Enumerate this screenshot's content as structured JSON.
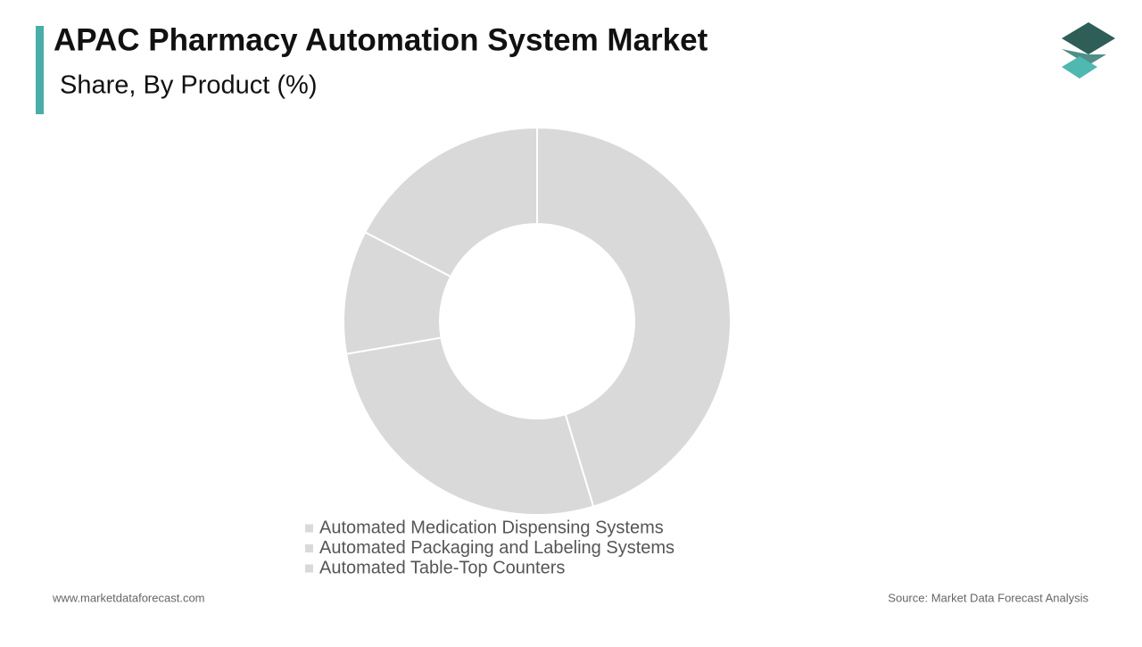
{
  "chart_data": {
    "type": "donut",
    "title": "APAC Pharmacy Automation System Market",
    "subtitle": "Share, By Product (%)",
    "categories": [
      "Automated Medication Dispensing Systems",
      "Automated Packaging and Labeling Systems",
      "Automated Table-Top Counters",
      null
    ],
    "values": [
      45.3,
      27,
      10.3,
      17.4
    ],
    "colors": [
      "#d9d9d9",
      "#d9d9d9",
      "#d9d9d9",
      "#d9d9d9"
    ],
    "legend": "bottom"
  },
  "footer": {
    "website": "www.marketdataforecast.com",
    "source": "Source: Market Data Forecast Analysis"
  }
}
